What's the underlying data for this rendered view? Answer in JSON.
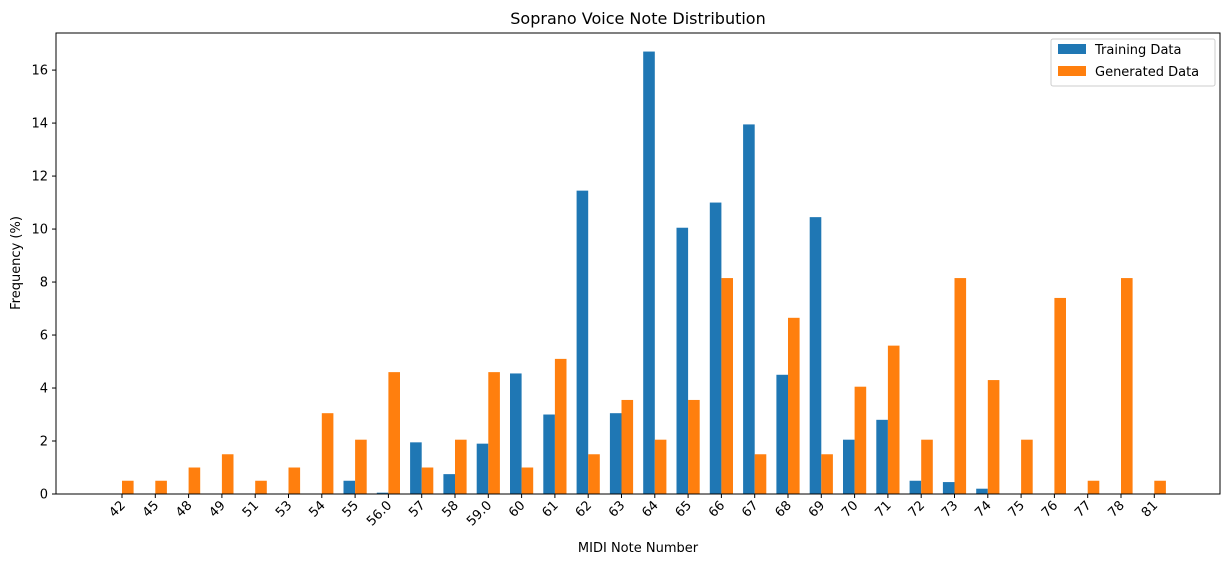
{
  "chart_data": {
    "type": "bar",
    "title": "Soprano Voice Note Distribution",
    "xlabel": "MIDI Note Number",
    "ylabel": "Frequency (%)",
    "ylim": [
      0,
      17.4
    ],
    "yticks": [
      0,
      2,
      4,
      6,
      8,
      10,
      12,
      14,
      16
    ],
    "categories": [
      "42",
      "45",
      "48",
      "49",
      "51",
      "53",
      "54",
      "55",
      "56.0",
      "57",
      "58",
      "59.0",
      "60",
      "61",
      "62",
      "63",
      "64",
      "65",
      "66",
      "67",
      "68",
      "69",
      "70",
      "71",
      "72",
      "73",
      "74",
      "75",
      "76",
      "77",
      "78",
      "81"
    ],
    "series": [
      {
        "name": "Training Data",
        "color": "#1f77b4",
        "values": [
          0,
          0,
          0,
          0,
          0,
          0,
          0,
          0.5,
          0.05,
          1.95,
          0.75,
          1.9,
          4.55,
          3.0,
          11.45,
          3.05,
          16.7,
          10.05,
          11.0,
          13.95,
          4.5,
          10.45,
          2.05,
          2.8,
          0.5,
          0.45,
          0.2,
          0,
          0,
          0,
          0,
          0
        ]
      },
      {
        "name": "Generated Data",
        "color": "#ff7f0e",
        "values": [
          0.5,
          0.5,
          1.0,
          1.5,
          0.5,
          1.0,
          3.05,
          2.05,
          4.6,
          1.0,
          2.05,
          4.6,
          1.0,
          5.1,
          1.5,
          3.55,
          2.05,
          3.55,
          8.15,
          1.5,
          6.65,
          1.5,
          4.05,
          5.6,
          2.05,
          8.15,
          4.3,
          2.05,
          7.4,
          0.5,
          8.15,
          0.5
        ]
      }
    ],
    "legend": "top-right",
    "grid": false
  }
}
